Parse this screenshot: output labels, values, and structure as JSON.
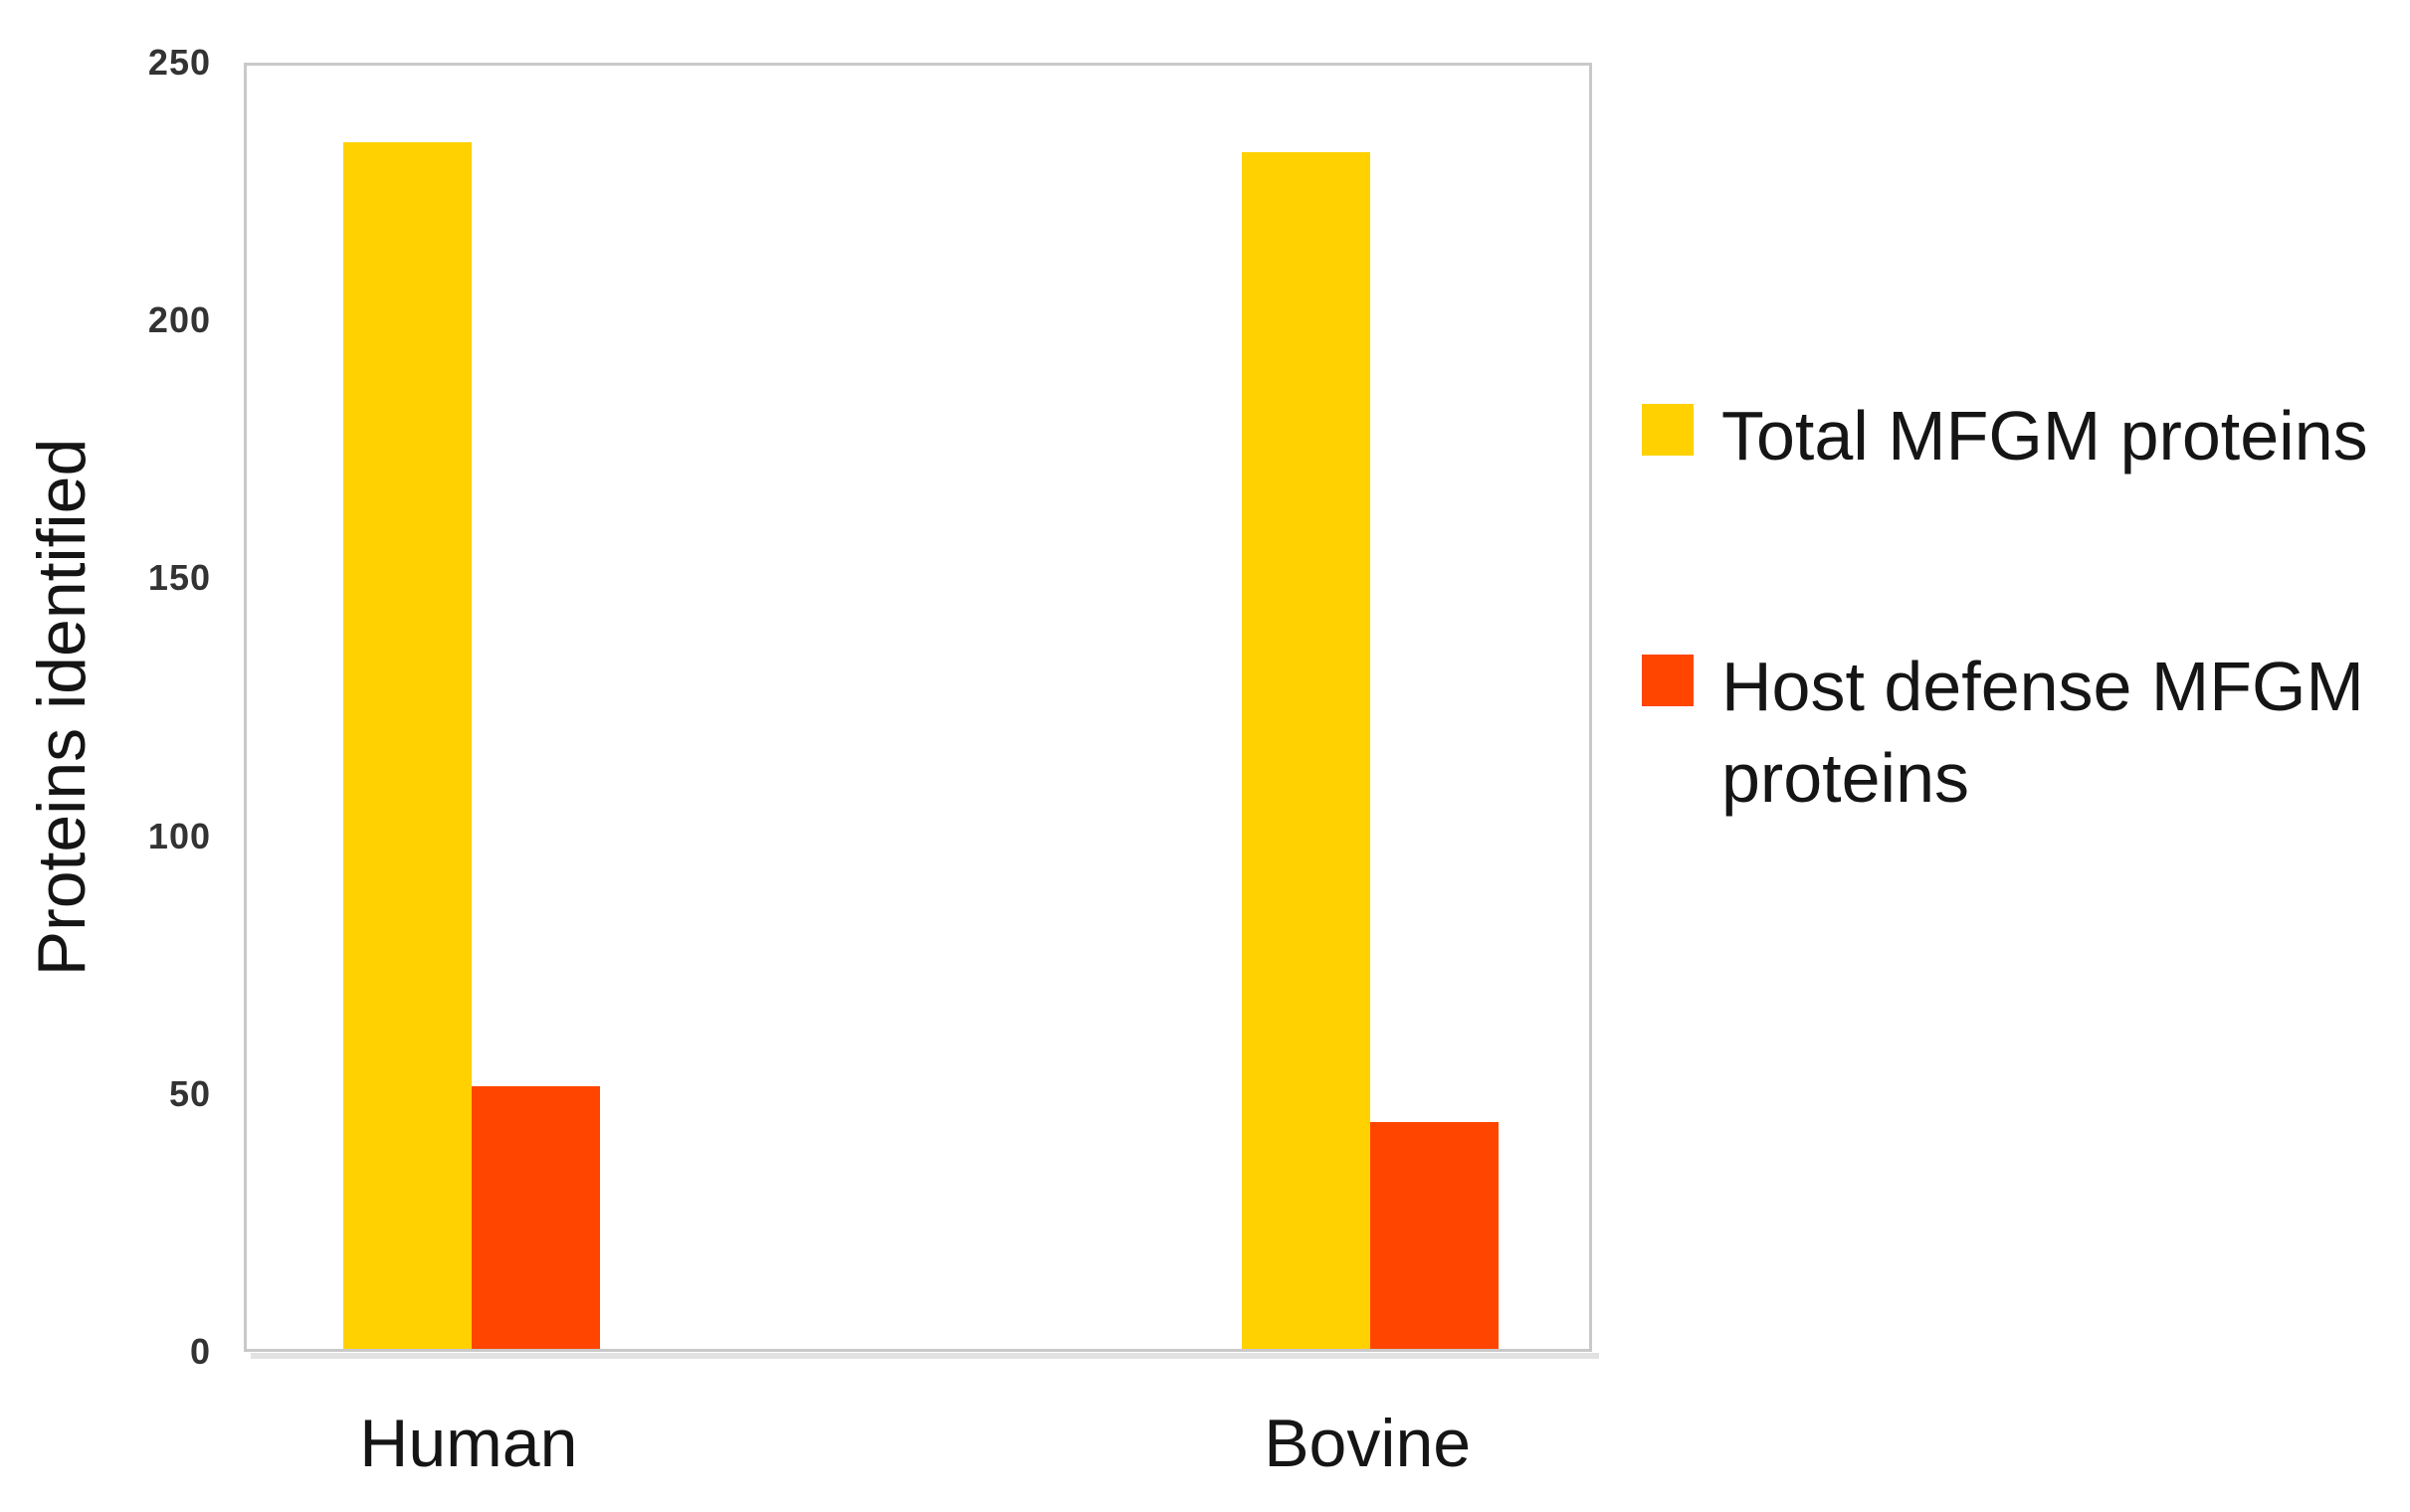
{
  "chart_data": {
    "type": "bar",
    "categories": [
      "Human",
      "Bovine"
    ],
    "series": [
      {
        "name": "Total MFGM proteins",
        "color": "#FFD100",
        "values": [
          234,
          232
        ]
      },
      {
        "name": "Host defense MFGM proteins",
        "color": "#FF4500",
        "values": [
          51,
          44
        ]
      }
    ],
    "title": "",
    "xlabel": "",
    "ylabel": "Proteins identified",
    "ylim": [
      0,
      250
    ],
    "yticks": [
      0,
      50,
      100,
      150,
      200,
      250
    ],
    "grid": false,
    "legend_position": "right"
  },
  "legend": {
    "items": [
      {
        "label": "Total MFGM proteins",
        "color": "#FFD100"
      },
      {
        "label": "Host defense MFGM proteins",
        "color": "#FF4500"
      }
    ]
  },
  "colors": {
    "total_series": "#FFD100",
    "host_defense_series": "#FF4500",
    "plot_border": "#C9C9C9",
    "text": "#151515"
  }
}
